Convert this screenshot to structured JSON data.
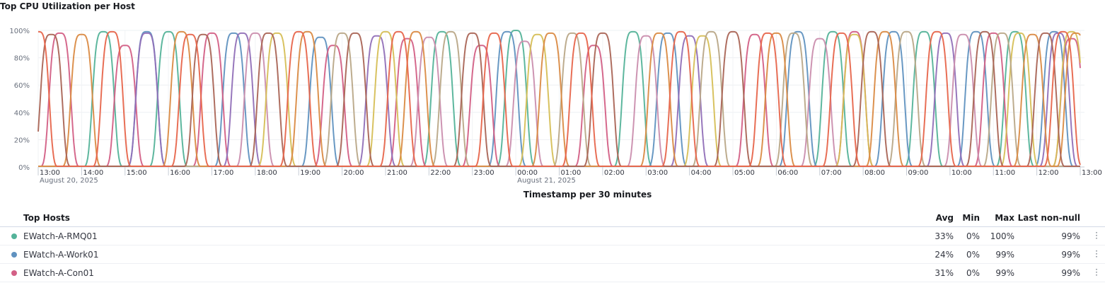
{
  "title": "Top CPU Utilization per Host",
  "chart_data": {
    "type": "line",
    "xlabel": "Timestamp per 30 minutes",
    "ylabel": "",
    "ylim": [
      0,
      100
    ],
    "y_ticks": [
      "0%",
      "20%",
      "40%",
      "60%",
      "80%",
      "100%"
    ],
    "x_ticks": [
      "13:00",
      "14:00",
      "15:00",
      "16:00",
      "17:00",
      "18:00",
      "19:00",
      "20:00",
      "21:00",
      "22:00",
      "23:00",
      "00:00",
      "01:00",
      "02:00",
      "03:00",
      "04:00",
      "05:00",
      "06:00",
      "07:00",
      "08:00",
      "09:00",
      "10:00",
      "11:00",
      "12:00",
      "13:00"
    ],
    "date_labels": [
      {
        "tick": "13:00",
        "date": "August 20, 2025"
      },
      {
        "tick": "00:00",
        "date": "August 21, 2025"
      }
    ],
    "grid": true,
    "x_hours": [
      13,
      37
    ],
    "series": [
      {
        "name": "EWatch-A-RMQ01",
        "color": "#54b399",
        "peaks": [
          [
            14.5,
            99
          ],
          [
            16.0,
            99
          ],
          [
            22.3,
            99
          ],
          [
            24.0,
            100
          ],
          [
            26.7,
            99
          ],
          [
            31.3,
            99
          ],
          [
            33.4,
            99
          ],
          [
            35.5,
            99
          ]
        ]
      },
      {
        "name": "EWatch-A-Work01",
        "color": "#6092c0",
        "peaks": [
          [
            15.5,
            99
          ],
          [
            17.5,
            98
          ],
          [
            19.5,
            95
          ],
          [
            23.8,
            99
          ],
          [
            27.5,
            98
          ],
          [
            30.5,
            99
          ],
          [
            32.7,
            99
          ],
          [
            34.6,
            99
          ],
          [
            36.4,
            99
          ]
        ]
      },
      {
        "name": "EWatch-A-Con01",
        "color": "#d36086",
        "peaks": [
          [
            13.5,
            98
          ],
          [
            15.0,
            89
          ],
          [
            17.0,
            98
          ],
          [
            19.8,
            89
          ],
          [
            21.5,
            94
          ],
          [
            23.2,
            89
          ],
          [
            25.8,
            89
          ],
          [
            29.5,
            97
          ],
          [
            31.8,
            99
          ],
          [
            35.0,
            98
          ],
          [
            36.8,
            94
          ]
        ]
      },
      {
        "name": "",
        "color": "#9170b8",
        "peaks": [
          [
            15.5,
            98
          ],
          [
            17.7,
            98
          ],
          [
            20.8,
            96
          ],
          [
            28.0,
            96
          ],
          [
            33.9,
            98
          ],
          [
            36.5,
            98
          ]
        ]
      },
      {
        "name": "",
        "color": "#ca8eae",
        "peaks": [
          [
            18.0,
            98
          ],
          [
            22.0,
            95
          ],
          [
            24.2,
            92
          ],
          [
            27.0,
            96
          ],
          [
            31.0,
            94
          ],
          [
            34.3,
            97
          ]
        ]
      },
      {
        "name": "",
        "color": "#d6bf57",
        "peaks": [
          [
            18.5,
            98
          ],
          [
            21.0,
            99
          ],
          [
            24.5,
            97
          ],
          [
            28.3,
            96
          ],
          [
            31.8,
            97
          ],
          [
            35.6,
            98
          ],
          [
            36.8,
            99
          ]
        ]
      },
      {
        "name": "",
        "color": "#b9a888",
        "peaks": [
          [
            20.0,
            98
          ],
          [
            22.5,
            99
          ],
          [
            25.3,
            98
          ],
          [
            28.5,
            99
          ],
          [
            30.4,
            98
          ],
          [
            33.0,
            99
          ],
          [
            35.2,
            98
          ]
        ]
      },
      {
        "name": "",
        "color": "#da8b45",
        "peaks": [
          [
            14.0,
            97
          ],
          [
            16.3,
            99
          ],
          [
            19.2,
            99
          ],
          [
            21.7,
            99
          ],
          [
            24.8,
            98
          ],
          [
            27.3,
            98
          ],
          [
            30.0,
            98
          ],
          [
            32.5,
            99
          ],
          [
            35.9,
            97
          ],
          [
            36.9,
            98
          ]
        ]
      },
      {
        "name": "",
        "color": "#aa6556",
        "peaks": [
          [
            13.3,
            97
          ],
          [
            16.8,
            97
          ],
          [
            18.3,
            98
          ],
          [
            20.3,
            98
          ],
          [
            23.0,
            98
          ],
          [
            26.0,
            98
          ],
          [
            29.0,
            99
          ],
          [
            32.2,
            99
          ],
          [
            34.8,
            99
          ],
          [
            36.2,
            98
          ]
        ]
      },
      {
        "name": "",
        "color": "#e7664c",
        "peaks": [
          [
            13.0,
            99
          ],
          [
            14.7,
            99
          ],
          [
            16.5,
            97
          ],
          [
            19.0,
            99
          ],
          [
            21.3,
            99
          ],
          [
            23.5,
            98
          ],
          [
            25.5,
            98
          ],
          [
            27.8,
            99
          ],
          [
            29.8,
            98
          ],
          [
            31.5,
            98
          ],
          [
            33.7,
            99
          ],
          [
            36.6,
            99
          ]
        ]
      }
    ]
  },
  "legend": {
    "header": {
      "name": "Top Hosts",
      "avg": "Avg",
      "min": "Min",
      "max": "Max",
      "last": "Last non-null"
    },
    "rows": [
      {
        "name": "EWatch-A-RMQ01",
        "color": "#54b399",
        "avg": "33%",
        "min": "0%",
        "max": "100%",
        "last": "99%"
      },
      {
        "name": "EWatch-A-Work01",
        "color": "#6092c0",
        "avg": "24%",
        "min": "0%",
        "max": "99%",
        "last": "99%"
      },
      {
        "name": "EWatch-A-Con01",
        "color": "#d36086",
        "avg": "31%",
        "min": "0%",
        "max": "99%",
        "last": "99%"
      }
    ]
  }
}
